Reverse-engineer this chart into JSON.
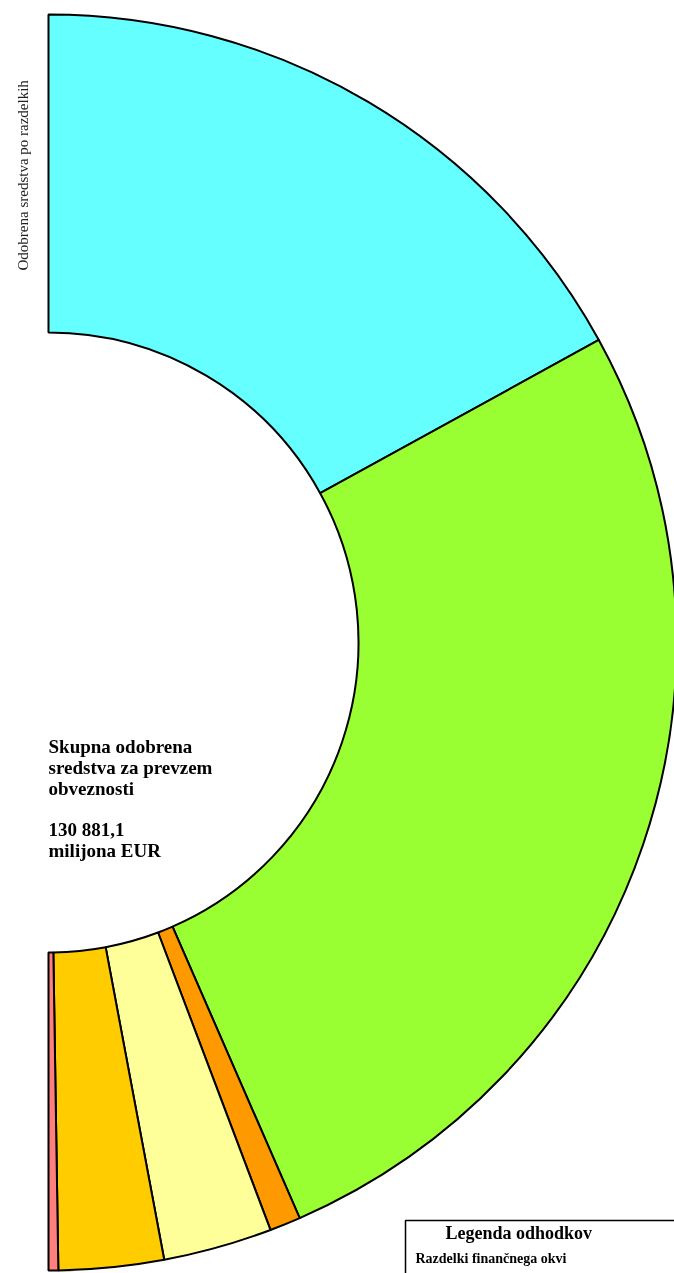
{
  "chart_data": {
    "type": "donut",
    "title": "Odobrena sredstva po razdelkih",
    "legend_title": "Legenda odhodkov",
    "categories": [
      null,
      null,
      null,
      null,
      null,
      null
    ],
    "values": [
      34,
      52.9,
      1.6,
      5.6,
      5.4,
      0.5
    ],
    "colors": [
      "#66ffff",
      "#99ff33",
      "#ff9900",
      "#ffff99",
      "#ffcc00",
      "#ff7f7f"
    ],
    "annotations": [
      "Skupna odobrena sredstva za prevzem obveznosti",
      "130 881,1 milijona EUR",
      "Razdelki finančnega okvi"
    ]
  }
}
